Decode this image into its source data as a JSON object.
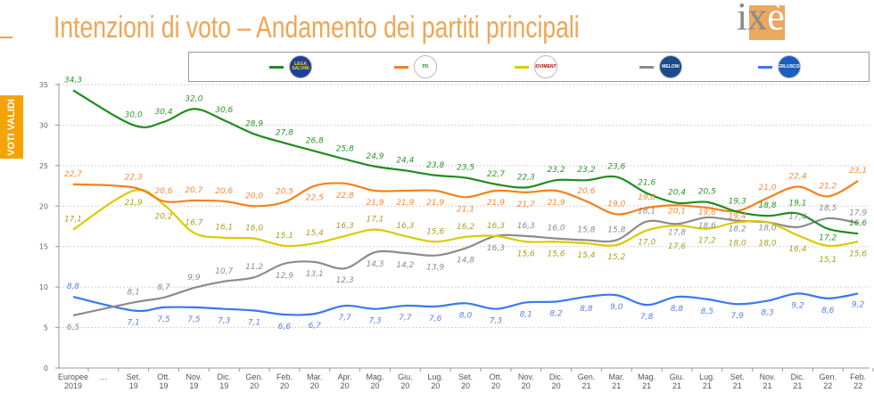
{
  "header": {
    "title": "Intenzioni di voto – Andamento dei partiti principali",
    "logo_text": "ixè"
  },
  "side_label": "VOTI VALIDI",
  "legend": [
    {
      "party": "Lega",
      "logo_text": "LEGA SALVINI",
      "color": "#1f8c1f",
      "logo_bg": "#1e3f9a",
      "logo_fg": "#ffd700"
    },
    {
      "party": "PD",
      "logo_text": "PD",
      "color": "#f7801a",
      "logo_bg": "#ffffff",
      "logo_fg": "#2c8a2c"
    },
    {
      "party": "M5S",
      "logo_text": "MOVIMENTO",
      "color": "#d8cc00",
      "logo_bg": "#ffffff",
      "logo_fg": "#c00000"
    },
    {
      "party": "FdI",
      "logo_text": "MELONI",
      "color": "#8c8c8c",
      "logo_bg": "#1c4a8c",
      "logo_fg": "#ffffff"
    },
    {
      "party": "FI",
      "logo_text": "BERLUSCONI",
      "color": "#3a78f2",
      "logo_bg": "#1a5fbf",
      "logo_fg": "#ffffff"
    }
  ],
  "chart_data": {
    "type": "line",
    "ylim": [
      0,
      35
    ],
    "yticks": [
      "0",
      "5",
      "10",
      "15",
      "20",
      "25",
      "30",
      "35"
    ],
    "grid": true,
    "categories": [
      [
        "Europee",
        "2019"
      ],
      [
        "…",
        ""
      ],
      [
        "Set.",
        "19"
      ],
      [
        "Ott.",
        "19"
      ],
      [
        "Nov.",
        "19"
      ],
      [
        "Dic.",
        "19"
      ],
      [
        "Gen.",
        "20"
      ],
      [
        "Feb.",
        "20"
      ],
      [
        "Mar.",
        "20"
      ],
      [
        "Apr.",
        "20"
      ],
      [
        "Mag.",
        "20"
      ],
      [
        "Giu.",
        "20"
      ],
      [
        "Lug.",
        "20"
      ],
      [
        "Set.",
        "20"
      ],
      [
        "Ott.",
        "20"
      ],
      [
        "Nov.",
        "20"
      ],
      [
        "Dic.",
        "20"
      ],
      [
        "Gen.",
        "21"
      ],
      [
        "Mar.",
        "21"
      ],
      [
        "Mag.",
        "21"
      ],
      [
        "Giu.",
        "21"
      ],
      [
        "Lug.",
        "21"
      ],
      [
        "Set.",
        "21"
      ],
      [
        "Nov.",
        "21"
      ],
      [
        "Dic.",
        "21"
      ],
      [
        "Gen.",
        "22"
      ],
      [
        "Feb.",
        "22"
      ]
    ],
    "series": [
      {
        "key": "lega",
        "color": "#1f8c1f",
        "label_color": "#2a962a",
        "values": [
          34.3,
          null,
          30.0,
          30.4,
          32.0,
          30.6,
          28.9,
          27.8,
          26.8,
          25.8,
          24.9,
          24.4,
          23.8,
          23.5,
          22.7,
          22.3,
          23.2,
          23.2,
          23.6,
          21.6,
          20.4,
          20.5,
          19.3,
          18.8,
          19.1,
          17.2,
          16.6
        ],
        "labels": [
          "34,3",
          "",
          "30,0",
          "30,4",
          "32,0",
          "30,6",
          "28,9",
          "27,8",
          "26,8",
          "25,8",
          "24,9",
          "24,4",
          "23,8",
          "23,5",
          "22,7",
          "22,3",
          "23,2",
          "23,2",
          "23,6",
          "21,6",
          "20,4",
          "20,5",
          "19,3",
          "18,8",
          "19,1",
          "17,2",
          "16,6"
        ]
      },
      {
        "key": "pd",
        "color": "#f7801a",
        "label_color": "#f58a3c",
        "values": [
          22.7,
          null,
          22.3,
          20.6,
          20.7,
          20.6,
          20.0,
          20.5,
          22.5,
          22.8,
          21.9,
          21.9,
          21.9,
          21.1,
          21.9,
          21.7,
          21.9,
          20.6,
          19.0,
          19.8,
          20.1,
          19.8,
          19.4,
          21.0,
          22.4,
          21.2,
          23.1
        ],
        "labels": [
          "22,7",
          "",
          "22,3",
          "20,6",
          "20,7",
          "20,6",
          "20,0",
          "20,5",
          "22,5",
          "22,8",
          "21,9",
          "21,9",
          "21,9",
          "21,1",
          "21,9",
          "21,7",
          "21,9",
          "20,6",
          "19,0",
          "19,8",
          "20,1",
          "19,8",
          "19,4",
          "21,0",
          "22,4",
          "21,2",
          "23,1"
        ]
      },
      {
        "key": "m5s",
        "color": "#d8cc00",
        "label_color": "#a9a124",
        "values": [
          17.1,
          null,
          21.9,
          20.2,
          16.7,
          16.1,
          16.0,
          15.1,
          15.4,
          16.3,
          17.1,
          16.3,
          15.6,
          16.2,
          16.3,
          15.6,
          15.6,
          15.4,
          15.2,
          17.0,
          17.6,
          17.2,
          18.0,
          18.0,
          16.4,
          15.1,
          15.6
        ],
        "labels": [
          "17,1",
          "",
          "21,9",
          "20,2",
          "16,7",
          "16,1",
          "16,0",
          "15,1",
          "15,4",
          "16,3",
          "17,1",
          "16,3",
          "15,6",
          "16,2",
          "16,3",
          "15,6",
          "15,6",
          "15,4",
          "15,2",
          "17,0",
          "17,6",
          "17,2",
          "18,0",
          "18,0",
          "16,4",
          "15,1",
          "15,6"
        ]
      },
      {
        "key": "fdi",
        "color": "#8c8c8c",
        "label_color": "#8c8c8c",
        "values": [
          6.5,
          null,
          8.1,
          8.7,
          9.9,
          10.7,
          11.2,
          12.9,
          13.1,
          12.3,
          14.3,
          14.2,
          13.9,
          14.8,
          16.3,
          16.3,
          16.0,
          15.8,
          15.8,
          18.1,
          17.8,
          18.6,
          18.2,
          18.0,
          17.4,
          18.5,
          17.9
        ],
        "labels": [
          "6,5",
          "",
          "8,1",
          "8,7",
          "9,9",
          "10,7",
          "11,2",
          "12,9",
          "13,1",
          "12,3",
          "14,3",
          "14,2",
          "13,9",
          "14,8",
          "16,3",
          "16,3",
          "16,0",
          "15,8",
          "15,8",
          "18,1",
          "17,8",
          "18,6",
          "18,2",
          "18,0",
          "17,4",
          "18,5",
          "17,9"
        ]
      },
      {
        "key": "fi",
        "color": "#3a78f2",
        "label_color": "#5a80f0",
        "values": [
          8.8,
          null,
          7.1,
          7.5,
          7.5,
          7.3,
          7.1,
          6.6,
          6.7,
          7.7,
          7.3,
          7.7,
          7.6,
          8.0,
          7.3,
          8.1,
          8.2,
          8.8,
          9.0,
          7.8,
          8.8,
          8.5,
          7.9,
          8.3,
          9.2,
          8.6,
          9.2
        ],
        "labels": [
          "8,8",
          "",
          "7,1",
          "7,5",
          "7,5",
          "7,3",
          "7,1",
          "6,6",
          "6,7",
          "7,7",
          "7,3",
          "7,7",
          "7,6",
          "8,0",
          "7,3",
          "8,1",
          "8,2",
          "8,8",
          "9,0",
          "7,8",
          "8,8",
          "8,5",
          "7,9",
          "8,3",
          "9,2",
          "8,6",
          "9,2"
        ]
      }
    ]
  }
}
